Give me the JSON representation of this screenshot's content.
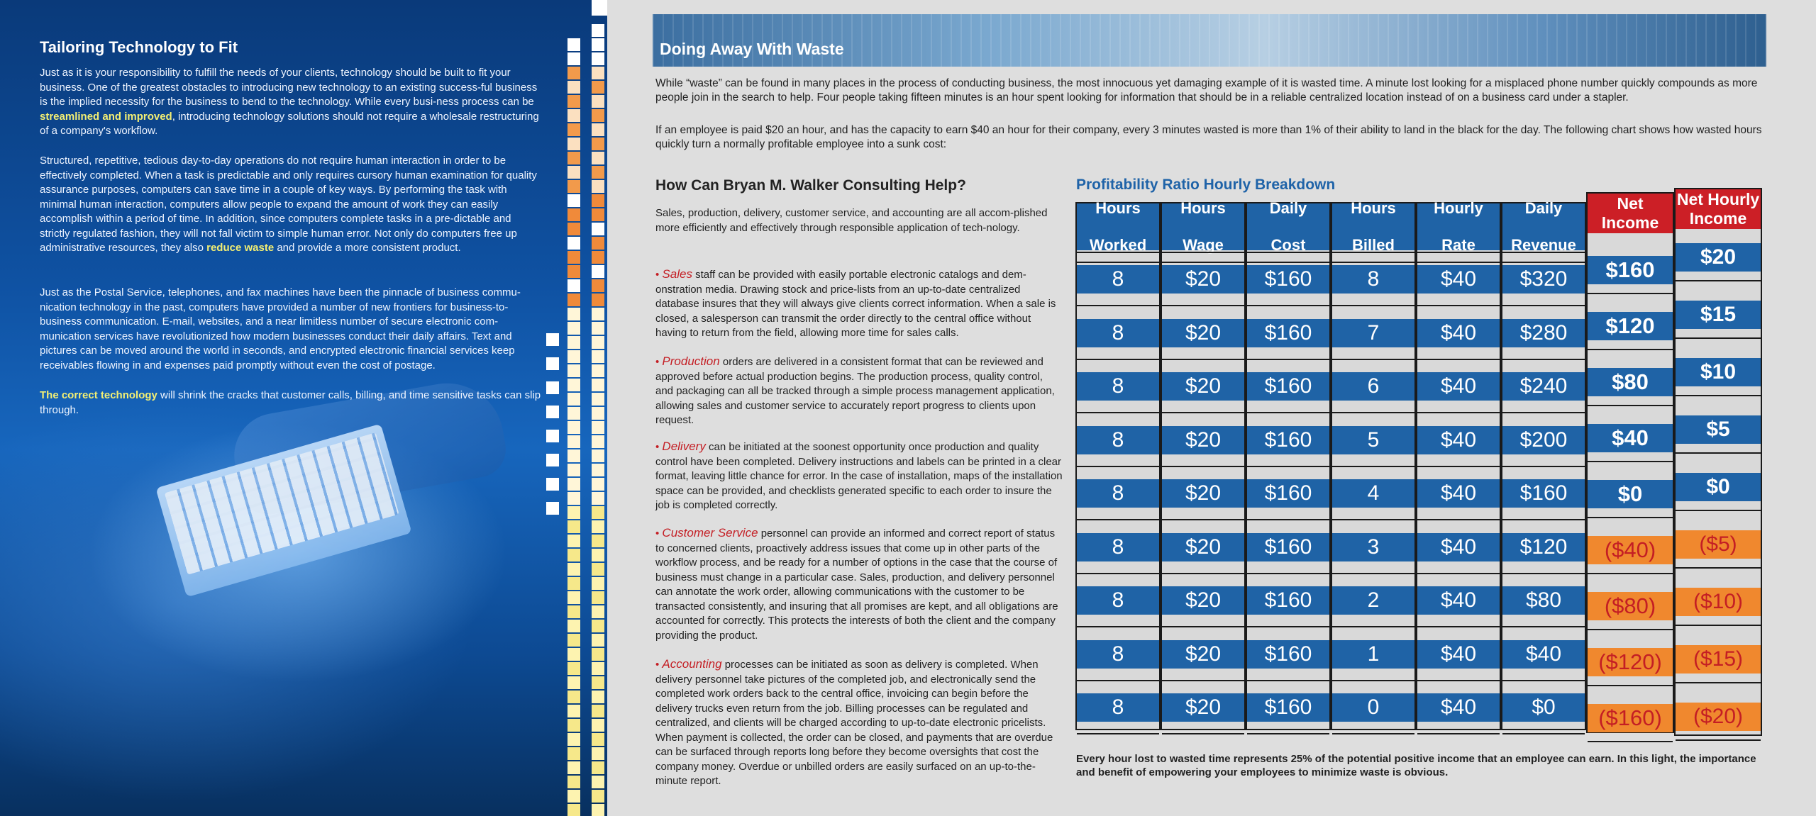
{
  "left": {
    "title": "Tailoring Technology to Fit",
    "p1_a": "Just as it is your responsibility to fulfill the needs of your clients, technology should be built to fit your business.  One of the greatest obstacles to introducing new technology to an existing success-ful business is the implied necessity for the business to bend to the technology.  While every busi-ness process can be ",
    "p1_hl": "streamlined and improved",
    "p1_b": ", introducing technology solutions should not require a wholesale restructuring of a company's workflow.",
    "p2_a": "Structured, repetitive, tedious day-to-day operations do not require human interaction in order to be effectively completed.  When a task is predictable and only requires cursory human examination for quality assurance purposes, computers can save time in a couple of key ways.  By performing the task with minimal human interaction, computers allow people to expand the amount of work they can easily accomplish within a period of time.  In addition, since computers complete tasks in a pre-dictable and strictly regulated fashion, they will not fall victim to simple human error.  Not only do computers free up administrative resources, they also ",
    "p2_hl": "reduce waste",
    "p2_b": " and provide a more consistent product.",
    "p3": "Just as the Postal Service, telephones, and fax machines have been the pinnacle of business commu-nication technology in the past, computers have provided a number of new frontiers for business-to-business communication.  E-mail, websites, and a near limitless number of secure electronic com-munication services have revolutionized how modern businesses conduct their daily affairs.  Text and pictures can be moved around the world in seconds, and encrypted electronic financial services keep receivables flowing in and expenses paid promptly without even the cost of postage.",
    "p4_hl": "The correct technology",
    "p4_b": " will shrink the cracks that customer calls, billing, and time sensitive tasks can slip through."
  },
  "right": {
    "banner_title": "Doing Away With Waste",
    "intro1": "While “waste” can be found in many places in the process of conducting business, the most innocuous yet damaging example of it is wasted time.  A minute lost looking for a misplaced phone number quickly compounds as more people join in the search to help.  Four people taking fifteen minutes is an hour spent looking for information that should be in a reliable centralized location instead of on a business card under a stapler.",
    "intro2": "If an employee is paid $20 an hour, and has the capacity to earn $40 an hour for their company, every 3 minutes wasted is more than 1% of their ability to land in the black for the day.  The following chart shows how wasted hours quickly turn a normally profitable employee into a sunk cost:",
    "help_title": "How Can Bryan M. Walker Consulting Help?",
    "help_intro": "Sales, production, delivery, customer service, and accounting are all accom-plished more efficiently and effectively through responsible application of tech-nology.",
    "bullets": [
      {
        "kw": "Sales",
        "text": " staff can be provided with easily portable electronic catalogs and dem-onstration media.  Drawing stock and price-lists from an up-to-date centralized database insures that they will always give clients correct information.  When a sale is closed, a salesperson can transmit the order directly to the central office without having to return from the field, allowing more time for sales calls."
      },
      {
        "kw": "Production",
        "text": " orders are delivered in a consistent format that can be reviewed and approved before actual production begins.  The production process, quality control, and packaging can all be tracked through a simple process management application, allowing sales and customer service to accurately report progress to clients upon request."
      },
      {
        "kw": "Delivery",
        "text": " can be initiated at the soonest opportunity once production and quality control have been completed.  Delivery instructions and labels can be printed in a clear format, leaving little chance for error.  In the case of installation, maps of the installation space can be provided, and checklists generated specific to each order to insure the job is completed correctly."
      },
      {
        "kw": "Customer Service",
        "text": " personnel can provide an informed and correct report of status to concerned clients, proactively address issues that come up in other parts of the workflow process, and be ready for a number of options in the case that the course of business must change in a particular case.  Sales, production, and delivery personnel can annotate the work order, allowing communications with the customer to be transacted consistently, and insuring that all promises are kept, and all obligations are accounted for correctly.  This protects the interests of both the client and the company providing the product."
      },
      {
        "kw": "Accounting",
        "text": " processes can be initiated as soon as delivery is completed.  When delivery personnel take pictures of the completed job, and electronically send the completed work orders back to the central office, invoicing can begin before the delivery trucks even return from the job.  Billing processes can be regulated and centralized, and clients will be charged according to up-to-date electronic pricelists.  When payment is collected, the order can be closed, and payments that are overdue can be surfaced through reports long before they become oversights that cost the company money.  Overdue or unbilled orders are easily surfaced on an up-to-the-minute report."
      }
    ],
    "bullet_glyph": "•",
    "footnote": "Every hour lost to wasted time represents 25% of the potential positive income that an employee can earn.  In this light, the importance and benefit of empowering your employees to minimize waste is obvious."
  },
  "chart_data": {
    "type": "table",
    "title": "Profitability Ratio Hourly Breakdown",
    "columns": [
      "Hours Worked",
      "Hours Wage",
      "Daily Cost",
      "Hours Billed",
      "Hourly Rate",
      "Daily Revenue",
      "Net Income",
      "Net Hourly Income"
    ],
    "col_heads": [
      [
        "Hours",
        "Worked"
      ],
      [
        "Hours",
        "Wage"
      ],
      [
        "Daily",
        "Cost"
      ],
      [
        "Hours",
        "Billed"
      ],
      [
        "Hourly",
        "Rate"
      ],
      [
        "Daily",
        "Revenue"
      ],
      [
        "Net",
        "Income"
      ],
      [
        "Net Hourly",
        "Income"
      ]
    ],
    "rows": [
      [
        "8",
        "$20",
        "$160",
        "8",
        "$40",
        "$320",
        "$160",
        "$20"
      ],
      [
        "8",
        "$20",
        "$160",
        "7",
        "$40",
        "$280",
        "$120",
        "$15"
      ],
      [
        "8",
        "$20",
        "$160",
        "6",
        "$40",
        "$240",
        "$80",
        "$10"
      ],
      [
        "8",
        "$20",
        "$160",
        "5",
        "$40",
        "$200",
        "$40",
        "$5"
      ],
      [
        "8",
        "$20",
        "$160",
        "4",
        "$40",
        "$160",
        "$0",
        "$0"
      ],
      [
        "8",
        "$20",
        "$160",
        "3",
        "$40",
        "$120",
        "($40)",
        "($5)"
      ],
      [
        "8",
        "$20",
        "$160",
        "2",
        "$40",
        "$80",
        "($80)",
        "($10)"
      ],
      [
        "8",
        "$20",
        "$160",
        "1",
        "$40",
        "$40",
        "($120)",
        "($15)"
      ],
      [
        "8",
        "$20",
        "$160",
        "0",
        "$40",
        "$0",
        "($160)",
        "($20)"
      ]
    ],
    "colors": {
      "blue": "#1f63a6",
      "red": "#cc1f26",
      "orange": "#f0882e",
      "negative_text": "#c41e24"
    }
  }
}
